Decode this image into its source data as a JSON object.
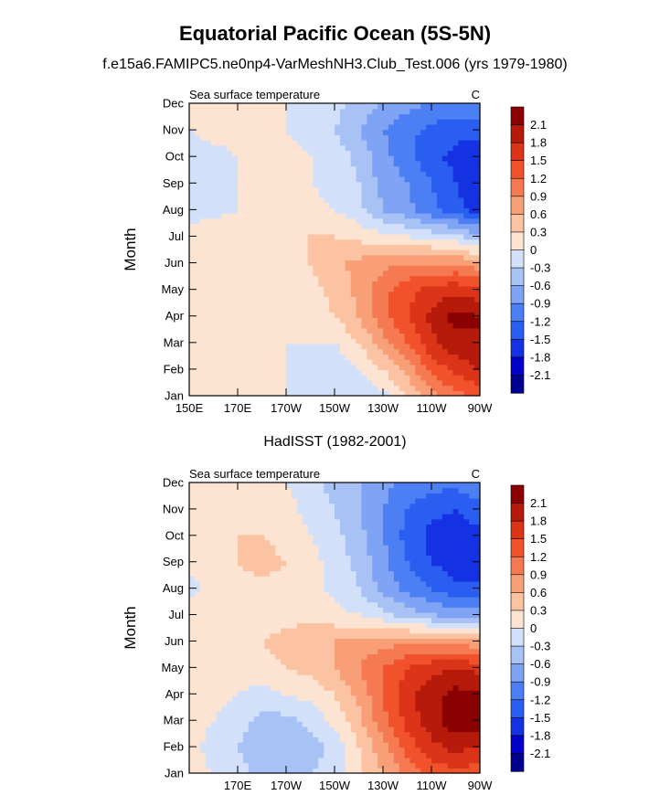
{
  "figure": {
    "title": "Equatorial Pacific Ocean (5S-5N)",
    "subtitle": "f.e15a6.FAMIPC5.ne0np4-VarMeshNH3.Club_Test.006 (yrs 1979-1980)",
    "colors": [
      "#00008f",
      "#0000c8",
      "#1432e1",
      "#2a5ef0",
      "#4c7ff4",
      "#7fa3f5",
      "#a8c2f5",
      "#d2e1f9",
      "#fde4d2",
      "#fcc3a2",
      "#f89f78",
      "#f57a52",
      "#f1522c",
      "#db3418",
      "#b51a0a",
      "#8b0000"
    ]
  },
  "chart_data": [
    {
      "type": "heatmap",
      "panel_title": "",
      "left_string": "Sea surface temperature",
      "right_string": "C",
      "ylabel": "Month",
      "xlabel": "",
      "x_tick_labels": [
        "150E",
        "170E",
        "170W",
        "150W",
        "130W",
        "110W",
        "90W"
      ],
      "y_tick_labels": [
        "Jan",
        "Feb",
        "Mar",
        "Apr",
        "May",
        "Jun",
        "Jul",
        "Aug",
        "Sep",
        "Oct",
        "Nov",
        "Dec"
      ],
      "xlim": [
        150,
        270
      ],
      "ylim": [
        1,
        12
      ],
      "colorbar_labels": [
        "2.1",
        "1.8",
        "1.5",
        "1.2",
        "0.9",
        "0.6",
        "0.3",
        "0",
        "-0.3",
        "-0.6",
        "-0.9",
        "-1.2",
        "-1.5",
        "-1.8",
        "-2.1"
      ],
      "levels": [
        -2.1,
        -1.8,
        -1.5,
        -1.2,
        -0.9,
        -0.6,
        -0.3,
        0,
        0.3,
        0.6,
        0.9,
        1.2,
        1.5,
        1.8,
        2.1
      ],
      "lon": [
        150,
        160,
        170,
        180,
        190,
        200,
        210,
        220,
        230,
        240,
        250,
        260,
        270
      ],
      "months": [
        1,
        2,
        3,
        4,
        5,
        6,
        7,
        8,
        9,
        10,
        11,
        12
      ],
      "values": [
        [
          0.1,
          0.1,
          0.1,
          0.0,
          0.0,
          -0.1,
          -0.2,
          -0.2,
          -0.1,
          0.3,
          0.8,
          1.1,
          1.3
        ],
        [
          0.1,
          0.1,
          0.1,
          0.0,
          0.0,
          -0.1,
          -0.3,
          0.0,
          0.3,
          0.7,
          1.3,
          1.6,
          1.8
        ],
        [
          0.1,
          0.1,
          0.1,
          0.0,
          0.0,
          0.0,
          0.0,
          0.3,
          0.8,
          1.2,
          1.7,
          2.0,
          2.1
        ],
        [
          0.1,
          0.1,
          0.1,
          0.1,
          0.1,
          0.1,
          0.3,
          0.6,
          1.1,
          1.5,
          1.9,
          2.2,
          2.1
        ],
        [
          0.1,
          0.1,
          0.1,
          0.1,
          0.1,
          0.2,
          0.4,
          0.7,
          1.1,
          1.4,
          1.6,
          1.7,
          1.6
        ],
        [
          0.1,
          0.1,
          0.1,
          0.1,
          0.2,
          0.3,
          0.5,
          0.7,
          0.8,
          0.9,
          0.9,
          0.9,
          0.7
        ],
        [
          0.1,
          0.2,
          0.2,
          0.2,
          0.3,
          0.3,
          0.3,
          0.2,
          0.1,
          0.0,
          -0.1,
          -0.2,
          -0.5
        ],
        [
          -0.1,
          -0.1,
          0.0,
          0.1,
          0.1,
          0.1,
          0.0,
          -0.2,
          -0.6,
          -0.8,
          -1.1,
          -1.4,
          -1.6
        ],
        [
          -0.2,
          -0.1,
          0.0,
          0.1,
          0.1,
          0.0,
          -0.1,
          -0.3,
          -0.7,
          -0.9,
          -1.2,
          -1.5,
          -1.7
        ],
        [
          -0.2,
          -0.1,
          0.0,
          0.1,
          0.1,
          0.0,
          -0.1,
          -0.4,
          -0.8,
          -1.1,
          -1.4,
          -1.6,
          -1.7
        ],
        [
          0.0,
          0.1,
          0.1,
          0.1,
          0.0,
          -0.1,
          -0.3,
          -0.6,
          -0.9,
          -1.1,
          -1.3,
          -1.4,
          -1.4
        ],
        [
          0.1,
          0.1,
          0.1,
          0.1,
          0.0,
          -0.1,
          -0.2,
          -0.4,
          -0.6,
          -0.8,
          -0.9,
          -1.0,
          -1.0
        ]
      ]
    },
    {
      "type": "heatmap",
      "panel_title": "HadISST (1982-2001)",
      "left_string": "Sea surface temperature",
      "right_string": "C",
      "ylabel": "Month",
      "xlabel": "",
      "x_tick_labels": [
        "",
        "170E",
        "170W",
        "150W",
        "130W",
        "110W",
        "90W"
      ],
      "y_tick_labels": [
        "Jan",
        "Feb",
        "Mar",
        "Apr",
        "May",
        "Jun",
        "Jul",
        "Aug",
        "Sep",
        "Oct",
        "Nov",
        "Dec"
      ],
      "xlim": [
        150,
        270
      ],
      "ylim": [
        1,
        12
      ],
      "colorbar_labels": [
        "2.1",
        "1.8",
        "1.5",
        "1.2",
        "0.9",
        "0.6",
        "0.3",
        "0",
        "-0.3",
        "-0.6",
        "-0.9",
        "-1.2",
        "-1.5",
        "-1.8",
        "-2.1"
      ],
      "levels": [
        -2.1,
        -1.8,
        -1.5,
        -1.2,
        -0.9,
        -0.6,
        -0.3,
        0,
        0.3,
        0.6,
        0.9,
        1.2,
        1.5,
        1.8,
        2.1
      ],
      "lon": [
        150,
        160,
        170,
        180,
        190,
        200,
        210,
        220,
        230,
        240,
        250,
        260,
        270
      ],
      "months": [
        1,
        2,
        3,
        4,
        5,
        6,
        7,
        8,
        9,
        10,
        11,
        12
      ],
      "values": [
        [
          0.1,
          0.0,
          -0.2,
          -0.4,
          -0.5,
          -0.3,
          -0.1,
          0.2,
          0.6,
          1.0,
          1.3,
          1.4,
          1.3
        ],
        [
          0.1,
          -0.1,
          -0.3,
          -0.5,
          -0.6,
          -0.5,
          -0.2,
          0.3,
          0.8,
          1.3,
          1.7,
          1.9,
          1.8
        ],
        [
          0.1,
          0.0,
          -0.2,
          -0.4,
          -0.4,
          -0.2,
          0.1,
          0.5,
          1.1,
          1.6,
          2.0,
          2.3,
          2.4
        ],
        [
          0.1,
          0.1,
          0.0,
          -0.1,
          0.0,
          0.1,
          0.3,
          0.7,
          1.2,
          1.7,
          2.0,
          2.2,
          2.2
        ],
        [
          0.1,
          0.1,
          0.1,
          0.2,
          0.3,
          0.4,
          0.6,
          0.9,
          1.2,
          1.5,
          1.7,
          1.8,
          1.7
        ],
        [
          0.1,
          0.2,
          0.3,
          0.3,
          0.4,
          0.5,
          0.6,
          0.7,
          0.8,
          0.8,
          0.8,
          0.8,
          0.6
        ],
        [
          0.1,
          0.2,
          0.2,
          0.2,
          0.2,
          0.2,
          0.1,
          0.0,
          -0.2,
          -0.4,
          -0.6,
          -0.7,
          -0.7
        ],
        [
          -0.1,
          0.1,
          0.2,
          0.2,
          0.2,
          0.1,
          -0.1,
          -0.3,
          -0.7,
          -1.0,
          -1.2,
          -1.4,
          -1.4
        ],
        [
          0.1,
          0.2,
          0.3,
          0.4,
          0.3,
          0.1,
          -0.1,
          -0.4,
          -0.8,
          -1.2,
          -1.5,
          -1.7,
          -1.7
        ],
        [
          0.1,
          0.2,
          0.3,
          0.3,
          0.2,
          0.0,
          -0.2,
          -0.5,
          -0.9,
          -1.3,
          -1.6,
          -1.7,
          -1.6
        ],
        [
          0.1,
          0.2,
          0.2,
          0.2,
          0.1,
          -0.1,
          -0.3,
          -0.6,
          -0.9,
          -1.2,
          -1.4,
          -1.5,
          -1.3
        ],
        [
          0.1,
          0.2,
          0.2,
          0.1,
          0.0,
          -0.2,
          -0.4,
          -0.6,
          -0.8,
          -1.0,
          -1.1,
          -1.1,
          -1.0
        ]
      ]
    }
  ]
}
